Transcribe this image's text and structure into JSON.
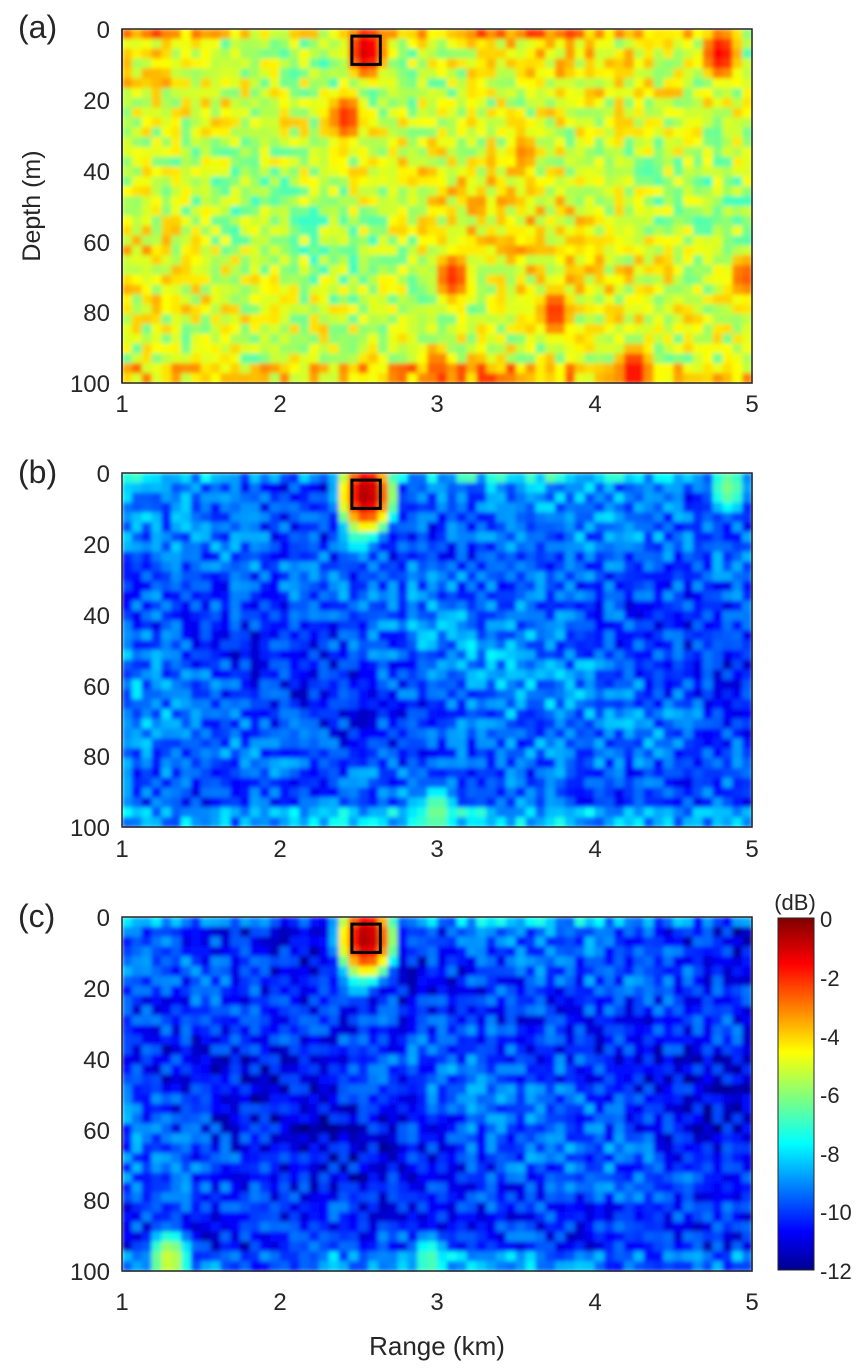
{
  "chart_data": [
    {
      "type": "heatmap",
      "panel_label": "(a)",
      "xlabel": "",
      "ylabel": "Depth (m)",
      "xlim": [
        1,
        5
      ],
      "ylim": [
        0,
        100
      ],
      "y_reversed": true,
      "x_ticks": [
        "1",
        "2",
        "3",
        "4",
        "5"
      ],
      "y_ticks": [
        "0",
        "20",
        "40",
        "60",
        "80",
        "100"
      ],
      "value_range_db": [
        -7,
        -2
      ],
      "background_db": -5.0,
      "hotspots": [
        {
          "range_km": 2.55,
          "depth_m": 6,
          "db": -1.0
        },
        {
          "range_km": 2.42,
          "depth_m": 25,
          "db": -2.0
        },
        {
          "range_km": 4.8,
          "depth_m": 7,
          "db": -1.5
        },
        {
          "range_km": 4.25,
          "depth_m": 97,
          "db": -1.5
        },
        {
          "range_km": 3.1,
          "depth_m": 70,
          "db": -2.0
        },
        {
          "range_km": 3.75,
          "depth_m": 80,
          "db": -2.0
        },
        {
          "range_km": 3.55,
          "depth_m": 35,
          "db": -3.0
        },
        {
          "range_km": 3.0,
          "depth_m": 96,
          "db": -2.5
        },
        {
          "range_km": 4.95,
          "depth_m": 70,
          "db": -2.5
        }
      ],
      "target_box": {
        "range_km": [
          2.46,
          2.64
        ],
        "depth_m": [
          2,
          10
        ]
      }
    },
    {
      "type": "heatmap",
      "panel_label": "(b)",
      "xlabel": "",
      "ylabel": "",
      "xlim": [
        1,
        5
      ],
      "ylim": [
        0,
        100
      ],
      "y_reversed": true,
      "x_ticks": [
        "1",
        "2",
        "3",
        "4",
        "5"
      ],
      "y_ticks": [
        "0",
        "20",
        "40",
        "60",
        "80",
        "100"
      ],
      "value_range_db": [
        -12,
        -6
      ],
      "background_db": -9.5,
      "hotspots": [
        {
          "range_km": 2.55,
          "depth_m": 6,
          "db": -0.5
        },
        {
          "range_km": 2.5,
          "depth_m": 16,
          "db": -6.5
        },
        {
          "range_km": 3.0,
          "depth_m": 96,
          "db": -6.0
        },
        {
          "range_km": 4.85,
          "depth_m": 4,
          "db": -6.0
        }
      ],
      "target_box": {
        "range_km": [
          2.46,
          2.64
        ],
        "depth_m": [
          2,
          10
        ]
      }
    },
    {
      "type": "heatmap",
      "panel_label": "(c)",
      "xlabel": "Range (km)",
      "ylabel": "",
      "xlim": [
        1,
        5
      ],
      "ylim": [
        0,
        100
      ],
      "y_reversed": true,
      "x_ticks": [
        "1",
        "2",
        "3",
        "4",
        "5"
      ],
      "y_ticks": [
        "0",
        "20",
        "40",
        "60",
        "80",
        "100"
      ],
      "value_range_db": [
        -12,
        -6
      ],
      "background_db": -10.0,
      "hotspots": [
        {
          "range_km": 2.55,
          "depth_m": 6,
          "db": -0.5
        },
        {
          "range_km": 2.5,
          "depth_m": 16,
          "db": -7.0
        },
        {
          "range_km": 2.95,
          "depth_m": 97,
          "db": -6.5
        },
        {
          "range_km": 1.3,
          "depth_m": 97,
          "db": -5.0
        }
      ],
      "target_box": {
        "range_km": [
          2.46,
          2.64
        ],
        "depth_m": [
          2,
          10
        ]
      }
    }
  ],
  "colorbar": {
    "unit_label": "(dB)",
    "min": -12,
    "max": 0,
    "ticks": [
      "0",
      "-2",
      "-4",
      "-6",
      "-8",
      "-10",
      "-12"
    ],
    "colormap": "jet"
  }
}
